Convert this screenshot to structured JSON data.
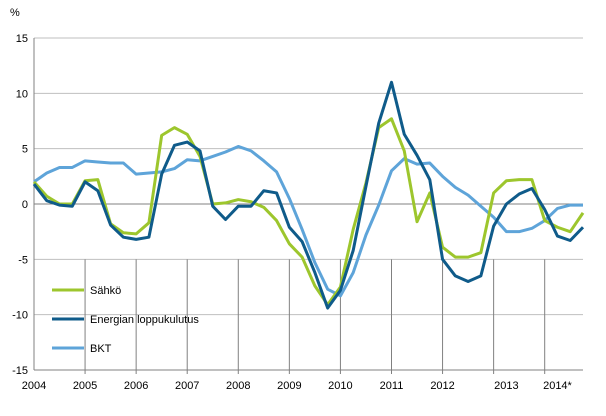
{
  "chart_data": {
    "type": "line",
    "title": "",
    "unit_label": "%",
    "xlabel": "",
    "ylabel": "%",
    "ylim": [
      -15,
      15
    ],
    "yticks": [
      15,
      10,
      5,
      0,
      -5,
      -10,
      -15
    ],
    "xlim": [
      2004,
      2014.75
    ],
    "grid": "horizontal",
    "legend_position": "bottom-left",
    "xtick_labels": [
      {
        "label": "2004",
        "x": 2004
      },
      {
        "label": "2005",
        "x": 2005
      },
      {
        "label": "2006",
        "x": 2006
      },
      {
        "label": "2007",
        "x": 2007
      },
      {
        "label": "2008",
        "x": 2008
      },
      {
        "label": "2009",
        "x": 2009
      },
      {
        "label": "2010",
        "x": 2010
      },
      {
        "label": "2011",
        "x": 2011
      },
      {
        "label": "2012",
        "x": 2012
      },
      {
        "label": "2013",
        "x": 2013.25
      },
      {
        "label": "2014*",
        "x": 2014.25
      }
    ],
    "x": [
      2004.0,
      2004.25,
      2004.5,
      2004.75,
      2005.0,
      2005.25,
      2005.5,
      2005.75,
      2006.0,
      2006.25,
      2006.5,
      2006.75,
      2007.0,
      2007.25,
      2007.5,
      2007.75,
      2008.0,
      2008.25,
      2008.5,
      2008.75,
      2009.0,
      2009.25,
      2009.5,
      2009.75,
      2010.0,
      2010.25,
      2010.5,
      2010.75,
      2011.0,
      2011.25,
      2011.5,
      2011.75,
      2012.0,
      2012.25,
      2012.5,
      2012.75,
      2013.0,
      2013.25,
      2013.5,
      2013.75,
      2014.0,
      2014.25,
      2014.5,
      2014.75
    ],
    "series": [
      {
        "name": "Sähkö",
        "color": "#9dc62d",
        "values": [
          2.0,
          0.7,
          0.0,
          0.0,
          2.1,
          2.2,
          -1.8,
          -2.6,
          -2.7,
          -1.7,
          6.2,
          6.9,
          6.3,
          4.3,
          0.0,
          0.1,
          0.4,
          0.2,
          -0.3,
          -1.5,
          -3.6,
          -4.8,
          -7.4,
          -9.1,
          -7.5,
          -2.3,
          1.9,
          6.9,
          7.7,
          4.8,
          -1.6,
          1.0,
          -3.9,
          -4.8,
          -4.8,
          -4.4,
          1.0,
          2.1,
          2.2,
          2.2,
          -1.5,
          -2.1,
          -2.5,
          -0.8
        ]
      },
      {
        "name": "Energian loppukulutus",
        "color": "#0f5b8a",
        "values": [
          1.8,
          0.3,
          -0.1,
          -0.2,
          2.0,
          1.2,
          -1.9,
          -3.0,
          -3.2,
          -3.0,
          2.7,
          5.3,
          5.6,
          4.8,
          -0.2,
          -1.4,
          -0.2,
          -0.2,
          1.2,
          1.0,
          -2.1,
          -3.4,
          -6.2,
          -9.4,
          -7.8,
          -4.2,
          1.6,
          7.3,
          11.0,
          6.3,
          4.4,
          2.2,
          -5.0,
          -6.5,
          -7.0,
          -6.5,
          -2.0,
          0.0,
          0.9,
          1.4,
          -0.5,
          -2.9,
          -3.3,
          -2.1
        ]
      },
      {
        "name": "BKT",
        "color": "#5ea4d9",
        "values": [
          2.0,
          2.8,
          3.3,
          3.3,
          3.9,
          3.8,
          3.7,
          3.7,
          2.7,
          2.8,
          2.9,
          3.2,
          4.0,
          3.9,
          4.3,
          4.7,
          5.2,
          4.8,
          3.9,
          2.9,
          0.5,
          -2.3,
          -5.3,
          -7.7,
          -8.3,
          -6.2,
          -2.8,
          -0.1,
          3.0,
          4.1,
          3.6,
          3.7,
          2.5,
          1.5,
          0.8,
          -0.2,
          -1.2,
          -2.5,
          -2.5,
          -2.2,
          -1.5,
          -0.4,
          -0.1,
          -0.1
        ]
      }
    ]
  },
  "legend": {
    "items": [
      {
        "label": "Sähkö",
        "color": "#9dc62d"
      },
      {
        "label": "Energian loppukulutus",
        "color": "#0f5b8a"
      },
      {
        "label": "BKT",
        "color": "#5ea4d9"
      }
    ]
  }
}
